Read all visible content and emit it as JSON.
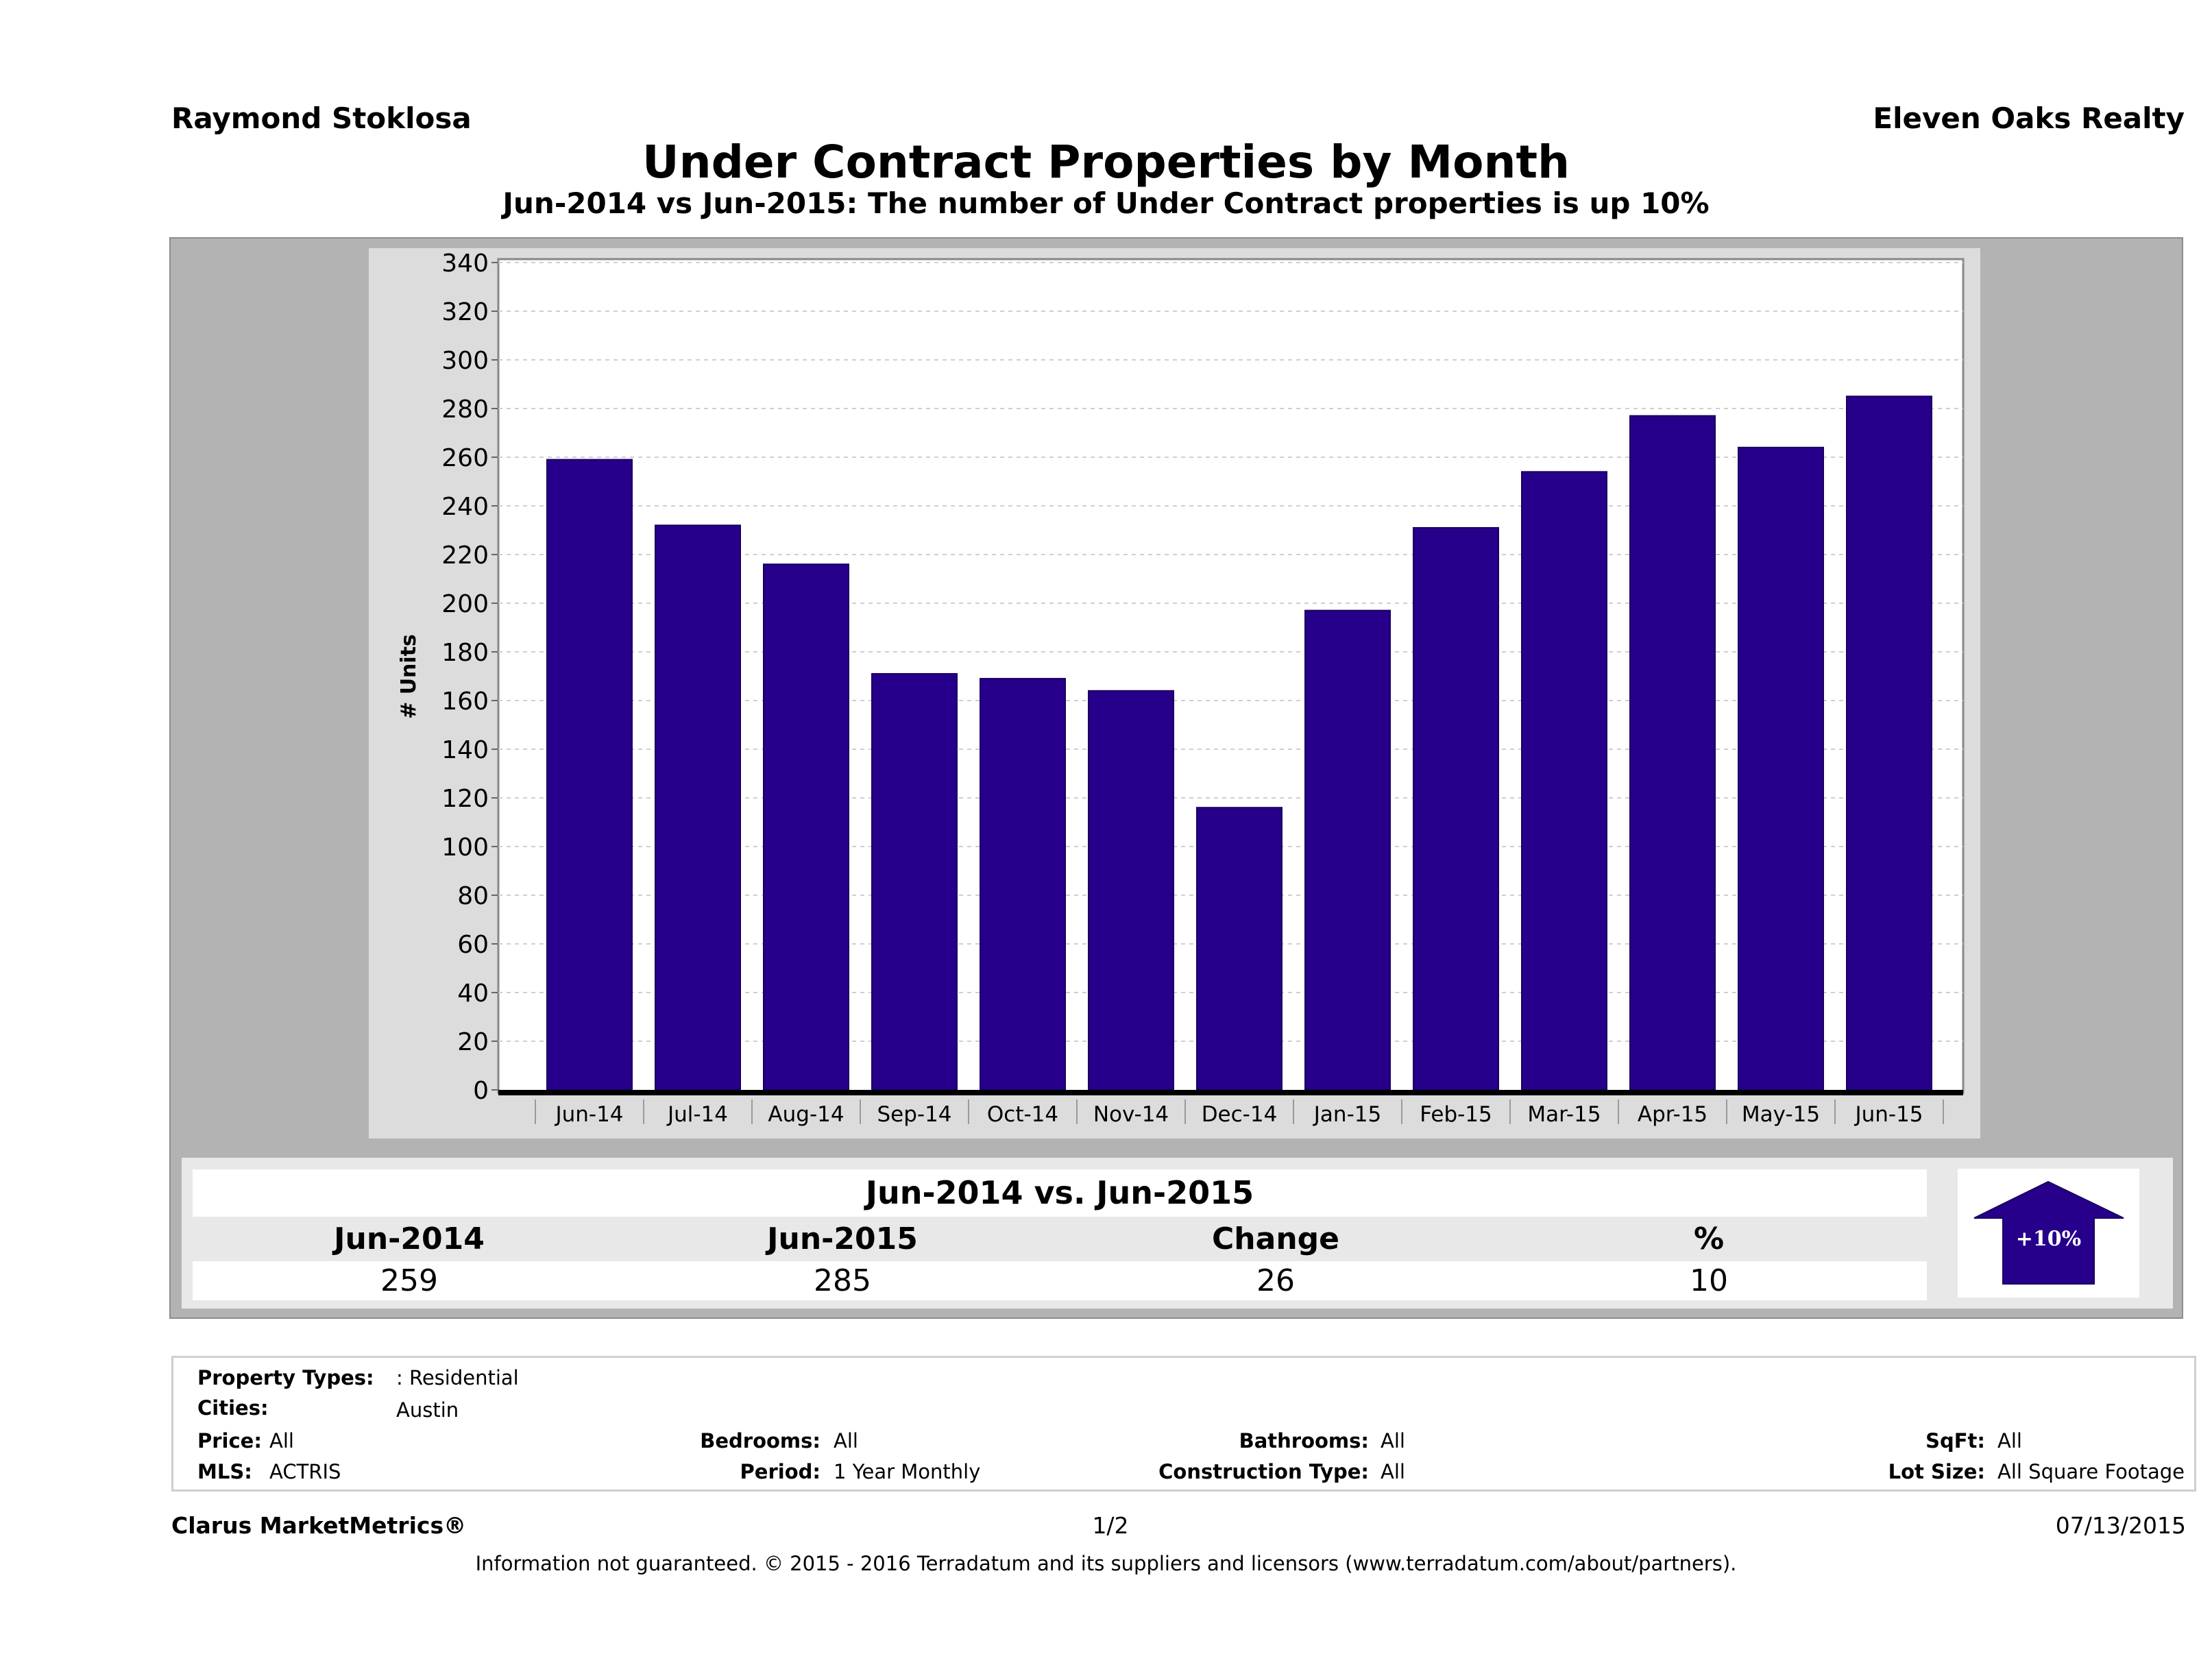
{
  "header": {
    "agent_name": "Raymond Stoklosa",
    "company_name": "Eleven Oaks Realty",
    "title": "Under Contract Properties by Month",
    "subtitle": "Jun-2014 vs Jun-2015: The number of Under Contract  properties is up 10%"
  },
  "chart_data": {
    "type": "bar",
    "title": "Under Contract Properties by Month",
    "xlabel": "",
    "ylabel": "# Units",
    "categories": [
      "Jun-14",
      "Jul-14",
      "Aug-14",
      "Sep-14",
      "Oct-14",
      "Nov-14",
      "Dec-14",
      "Jan-15",
      "Feb-15",
      "Mar-15",
      "Apr-15",
      "May-15",
      "Jun-15"
    ],
    "values": [
      259,
      232,
      216,
      171,
      169,
      164,
      116,
      197,
      231,
      254,
      277,
      264,
      285
    ],
    "ylim": [
      0,
      340
    ],
    "yticks": [
      0,
      20,
      40,
      60,
      80,
      100,
      120,
      140,
      160,
      180,
      200,
      220,
      240,
      260,
      280,
      300,
      320,
      340
    ],
    "grid": true,
    "bar_color": "#26008a"
  },
  "summary": {
    "title": "Jun-2014 vs. Jun-2015",
    "headers": [
      "Jun-2014",
      "Jun-2015",
      "Change",
      "%"
    ],
    "values": [
      "259",
      "285",
      "26",
      "10"
    ],
    "badge": "+10%",
    "badge_color": "#26008a",
    "badge_direction": "up"
  },
  "filters": {
    "property_types": {
      "label": "Property Types:",
      "value": ": Residential"
    },
    "cities": {
      "label": "Cities:",
      "value": "Austin"
    },
    "price": {
      "label": "Price:",
      "value": "All"
    },
    "bedrooms": {
      "label": "Bedrooms:",
      "value": "All"
    },
    "bathrooms": {
      "label": "Bathrooms:",
      "value": "All"
    },
    "sqft": {
      "label": "SqFt:",
      "value": "All"
    },
    "mls": {
      "label": "MLS:",
      "value": "ACTRIS"
    },
    "period": {
      "label": "Period:",
      "value": "1 Year Monthly"
    },
    "construction_type": {
      "label": "Construction Type:",
      "value": "All"
    },
    "lot_size": {
      "label": "Lot Size:",
      "value": "All Square Footage"
    }
  },
  "footer": {
    "brand": "Clarus MarketMetrics®",
    "page": "1/2",
    "date": "07/13/2015",
    "disclaimer": "Information not guaranteed. © 2015 - 2016 Terradatum and its suppliers and licensors (www.terradatum.com/about/partners)."
  }
}
